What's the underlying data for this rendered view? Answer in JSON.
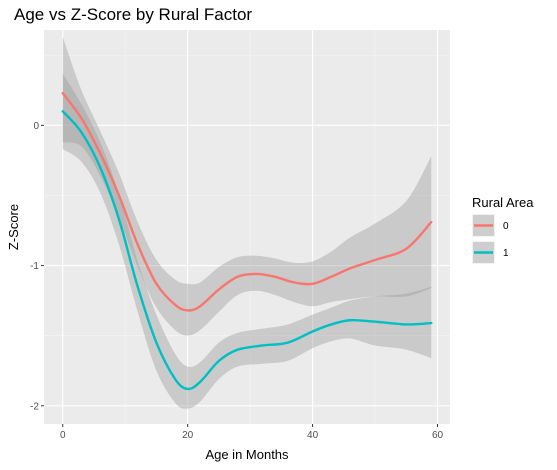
{
  "chart_data": {
    "type": "line",
    "title": "Age vs Z-Score by Rural Factor",
    "xlabel": "Age in Months",
    "ylabel": "Z-Score",
    "xlim": [
      -3,
      62
    ],
    "ylim": [
      -2.13,
      0.68
    ],
    "x_ticks": [
      0,
      20,
      40,
      60
    ],
    "y_ticks": [
      0,
      -1,
      -2
    ],
    "x_tick_labels": [
      "0",
      "20",
      "40",
      "60"
    ],
    "y_tick_labels": [
      "0",
      "-1",
      "-2"
    ],
    "grid": true,
    "smoothed_with_confidence_band": true,
    "legend": {
      "title": "Rural Area",
      "placement": "right"
    },
    "band_color": "#999999",
    "series": [
      {
        "name": "0",
        "color": "#F8766D",
        "x": [
          0,
          3,
          6,
          9,
          12,
          15,
          18,
          20,
          22,
          25,
          28,
          31,
          34,
          37,
          40,
          43,
          46,
          50,
          55,
          59
        ],
        "y": [
          0.23,
          0.05,
          -0.2,
          -0.5,
          -0.85,
          -1.13,
          -1.28,
          -1.32,
          -1.29,
          -1.17,
          -1.08,
          -1.06,
          -1.08,
          -1.12,
          -1.13,
          -1.08,
          -1.02,
          -0.96,
          -0.88,
          -0.69
        ],
        "lower": [
          -0.12,
          -0.15,
          -0.36,
          -0.66,
          -1.01,
          -1.3,
          -1.46,
          -1.5,
          -1.46,
          -1.33,
          -1.21,
          -1.18,
          -1.21,
          -1.26,
          -1.29,
          -1.26,
          -1.24,
          -1.22,
          -1.22,
          -1.16
        ],
        "upper": [
          0.63,
          0.25,
          -0.04,
          -0.34,
          -0.69,
          -0.96,
          -1.1,
          -1.13,
          -1.12,
          -1.01,
          -0.94,
          -0.93,
          -0.95,
          -0.98,
          -0.97,
          -0.9,
          -0.8,
          -0.7,
          -0.54,
          -0.22
        ]
      },
      {
        "name": "1",
        "color": "#00BFC4",
        "x": [
          0,
          3,
          6,
          9,
          12,
          15,
          18,
          20,
          22,
          25,
          28,
          32,
          36,
          40,
          43,
          46,
          50,
          55,
          59
        ],
        "y": [
          0.1,
          -0.05,
          -0.3,
          -0.67,
          -1.15,
          -1.55,
          -1.81,
          -1.88,
          -1.83,
          -1.68,
          -1.6,
          -1.57,
          -1.55,
          -1.47,
          -1.42,
          -1.39,
          -1.4,
          -1.42,
          -1.41
        ],
        "lower": [
          -0.17,
          -0.26,
          -0.48,
          -0.85,
          -1.33,
          -1.75,
          -1.98,
          -2.02,
          -1.97,
          -1.81,
          -1.72,
          -1.7,
          -1.68,
          -1.59,
          -1.54,
          -1.52,
          -1.57,
          -1.6,
          -1.66
        ],
        "upper": [
          0.37,
          0.15,
          -0.12,
          -0.49,
          -0.97,
          -1.35,
          -1.63,
          -1.72,
          -1.69,
          -1.55,
          -1.48,
          -1.45,
          -1.42,
          -1.35,
          -1.3,
          -1.25,
          -1.22,
          -1.2,
          -1.15
        ]
      }
    ]
  }
}
